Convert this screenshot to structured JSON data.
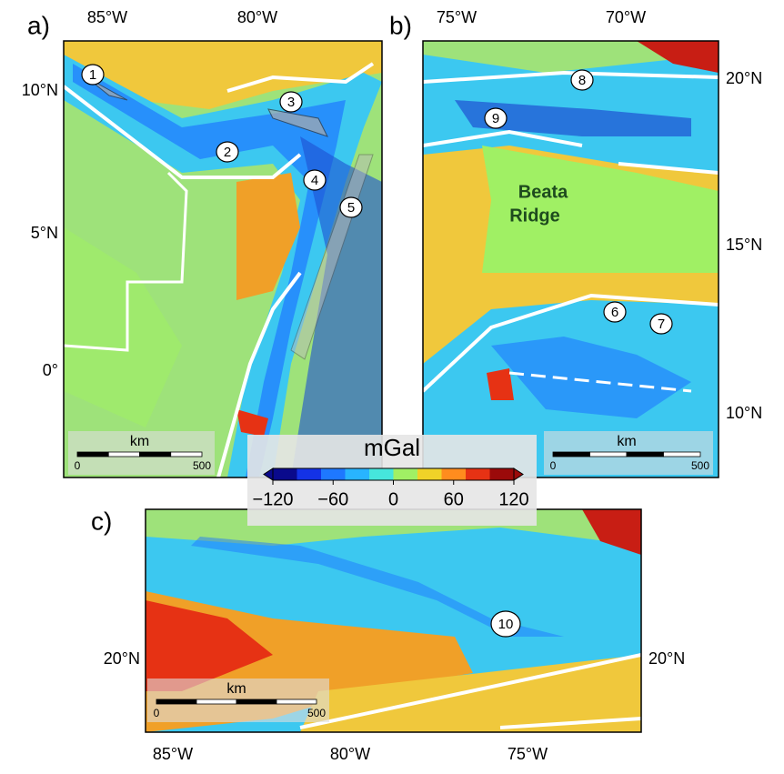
{
  "panels": [
    {
      "label": "a)",
      "lon_labels": [
        "85°W",
        "80°W"
      ],
      "lat_labels": [
        "10°N",
        "5°N",
        "0°"
      ],
      "features": [
        "1",
        "2",
        "3",
        "4",
        "5"
      ],
      "scale": {
        "unit": "km",
        "start": "0",
        "end": "500"
      }
    },
    {
      "label": "b)",
      "lon_labels": [
        "75°W",
        "70°W"
      ],
      "lat_labels": [
        "20°N",
        "15°N",
        "10°N"
      ],
      "features": [
        "6",
        "7",
        "8",
        "9"
      ],
      "annotation": [
        "Beata",
        "Ridge"
      ],
      "scale": {
        "unit": "km",
        "start": "0",
        "end": "500"
      }
    },
    {
      "label": "c)",
      "lon_labels": [
        "85°W",
        "80°W",
        "75°W"
      ],
      "lat_labels": [
        "20°N",
        "20°N"
      ],
      "features": [
        "10"
      ],
      "scale": {
        "unit": "km",
        "start": "0",
        "end": "500"
      }
    }
  ],
  "colorbar": {
    "title": "mGal",
    "range": [
      -120,
      120
    ],
    "ticks": [
      {
        "value": -120,
        "label": "−120"
      },
      {
        "value": -60,
        "label": "−60"
      },
      0,
      60,
      120
    ],
    "colors": [
      "#0a0a8c",
      "#1432e6",
      "#1e78ff",
      "#28b4ff",
      "#46e6dc",
      "#a0f064",
      "#f0d228",
      "#ff8c1e",
      "#e63214",
      "#9b0a0a"
    ]
  }
}
